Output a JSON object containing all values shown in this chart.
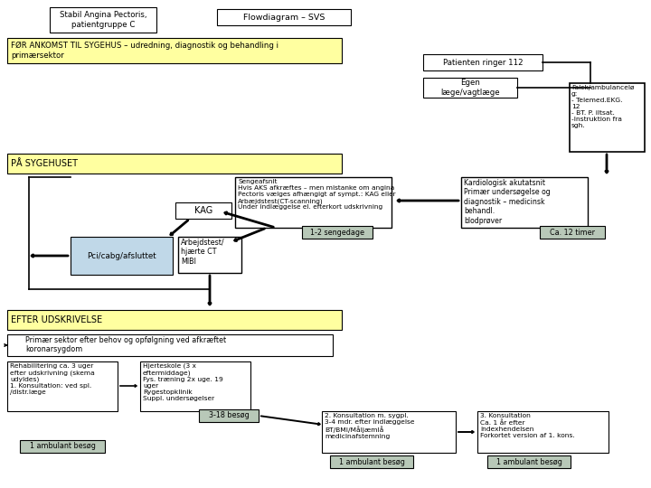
{
  "title_box1": "Stabil Angina Pectoris,\npatientgruppe C",
  "title_box2": "Flowdiagram – SVS",
  "section_for": "FØR ANKOMST TIL SYGEHUS – udredning, diagnostik og behandling i\nprimærsektor",
  "section_paa": "PÅ SYGEHUSET",
  "section_efter": "EFTER UDSKRIVELSE",
  "box_112": "Patienten ringer 112",
  "box_egen": "Egen\nlæge/vagtlæge",
  "box_falck": "Falck/ambulancelø\ng:\n- Telemed.EKG.\n12\n- BT. P. iltsat.\n-Instruktion fra\nsgh.",
  "box_kardiologisk": "Kardiologisk akutatsnit\nPrimær undersøgelse og\ndiagnostik – medicinsk\nbehandl.\nblodprøver",
  "box_ca12": "Ca. 12 timer",
  "box_sengeafsn": "Sengeafsnit\nHvis AKS afkræftes – men mistanke om angina\nPectoris vælges afhængigt af sympt.: KAG eller\nArbæjdstest(CT-scanning)\nUnder indlæggelse el. efterkort udskrivning",
  "box_12senge": "1-2 sengedage",
  "box_kag": "KAG",
  "box_pci": "Pci/cabg/afsluttet",
  "box_arbejdstest": "Arbejdstest/\nhjærte CT\nMIBI",
  "box_primaer_sektor": "Primær sektor efter behov og opfølgning ved afkræftet\nkoronarsygdom",
  "box_rehab": "Rehabilitering ca. 3 uger\nefter udskrivning (skema\nudyldes)\n1. Konsultation: ved spl.\n/distr.læge",
  "box_hjerteskole": "Hjerteskole (3 x\neftermiddage)\nFys. træning 2x uge. 19\nuger\nRygestopklinik\nSuppl. undersøgelser",
  "box_3_18": "3-18 besøg",
  "box_konsult2": "2. Konsultation m. sygpl.\n3-4 mdr. efter indlæggelse\nBT/BMI/Måljæmlå\nmedicinafstemning",
  "box_konsult3": "3. Konsultation\nCa. 1 år efter\nindexhendelsen\nForkortet version af 1. kons.",
  "box_amb1_rehab": "1 ambulant besøg",
  "box_amb1_konsult2": "1 ambulant besøg",
  "box_amb1_konsult3": "1 ambulant besøg",
  "color_yellow": "#FFFFA0",
  "color_blue": "#C0D8E8",
  "color_gray": "#B8C8B8",
  "color_white": "#FFFFFF",
  "color_black": "#000000",
  "bg_color": "#FFFFFF"
}
